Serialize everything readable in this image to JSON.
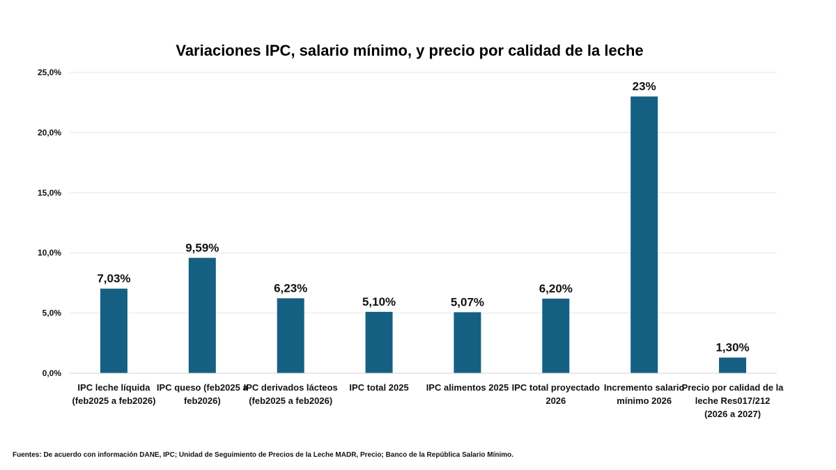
{
  "chart_data": {
    "type": "bar",
    "title": "Variaciones IPC, salario mínimo, y precio por calidad de la leche",
    "xlabel": "",
    "ylabel": "",
    "ylim": [
      0,
      25
    ],
    "yticks": [
      "0,0%",
      "5,0%",
      "10,0%",
      "15,0%",
      "20,0%",
      "25,0%"
    ],
    "ytick_values": [
      0,
      5,
      10,
      15,
      20,
      25
    ],
    "grid": true,
    "bar_color": "#156082",
    "categories": [
      [
        "IPC leche líquida",
        "(feb2025 a feb2026)"
      ],
      [
        "IPC queso (feb2025 a",
        "feb2026)"
      ],
      [
        "IPC derivados lácteos",
        "(feb2025 a feb2026)"
      ],
      [
        "IPC total 2025"
      ],
      [
        "IPC alimentos 2025"
      ],
      [
        "IPC total proyectado",
        "2026"
      ],
      [
        "Incremento salario",
        "mínimo 2026"
      ],
      [
        "Precio por calidad de la",
        "leche Res017/212",
        "(2026 a 2027)"
      ]
    ],
    "values": [
      7.03,
      9.59,
      6.23,
      5.1,
      5.07,
      6.2,
      23,
      1.3
    ],
    "data_labels": [
      "7,03%",
      "9,59%",
      "6,23%",
      "5,10%",
      "5,07%",
      "6,20%",
      "23%",
      "1,30%"
    ]
  },
  "footer": {
    "source": "Fuentes: De acuerdo con información DANE, IPC; Unidad de Seguimiento de Precios de la Leche MADR, Precio; Banco de la República Salario Mínimo."
  }
}
